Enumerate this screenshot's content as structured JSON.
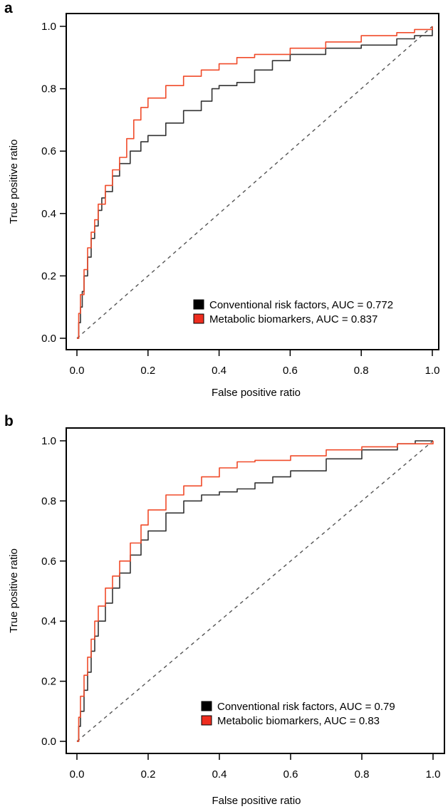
{
  "chart_data": [
    {
      "panel": "a",
      "type": "line",
      "xlabel": "False positive ratio",
      "ylabel": "True positive ratio",
      "xlim": [
        0,
        1
      ],
      "ylim": [
        0,
        1
      ],
      "xticks": [
        "0.0",
        "0.2",
        "0.4",
        "0.6",
        "0.8",
        "1.0"
      ],
      "yticks": [
        "0.0",
        "0.2",
        "0.4",
        "0.6",
        "0.8",
        "1.0"
      ],
      "grid": false,
      "legend_position": "bottom-right",
      "diagonal_reference": true,
      "series": [
        {
          "name": "Conventional risk factors, AUC = 0.772",
          "color": "#333333",
          "x": [
            0.0,
            0.005,
            0.01,
            0.015,
            0.02,
            0.03,
            0.04,
            0.05,
            0.06,
            0.07,
            0.08,
            0.1,
            0.12,
            0.15,
            0.18,
            0.2,
            0.25,
            0.3,
            0.35,
            0.38,
            0.4,
            0.45,
            0.5,
            0.55,
            0.6,
            0.7,
            0.8,
            0.9,
            0.95,
            1.0
          ],
          "y": [
            0.0,
            0.05,
            0.1,
            0.15,
            0.2,
            0.26,
            0.32,
            0.36,
            0.41,
            0.45,
            0.47,
            0.52,
            0.56,
            0.6,
            0.63,
            0.65,
            0.69,
            0.73,
            0.76,
            0.8,
            0.81,
            0.82,
            0.86,
            0.89,
            0.91,
            0.93,
            0.94,
            0.96,
            0.97,
            1.0
          ]
        },
        {
          "name": "Metabolic biomarkers, AUC = 0.837",
          "color": "#f04b2a",
          "x": [
            0.0,
            0.005,
            0.01,
            0.02,
            0.03,
            0.04,
            0.05,
            0.06,
            0.08,
            0.1,
            0.12,
            0.14,
            0.16,
            0.18,
            0.2,
            0.25,
            0.3,
            0.35,
            0.4,
            0.45,
            0.5,
            0.6,
            0.7,
            0.8,
            0.9,
            0.95,
            1.0
          ],
          "y": [
            0.0,
            0.08,
            0.14,
            0.22,
            0.29,
            0.34,
            0.38,
            0.43,
            0.49,
            0.54,
            0.58,
            0.64,
            0.7,
            0.74,
            0.77,
            0.81,
            0.84,
            0.86,
            0.88,
            0.9,
            0.91,
            0.93,
            0.95,
            0.97,
            0.98,
            0.99,
            1.0
          ]
        }
      ]
    },
    {
      "panel": "b",
      "type": "line",
      "xlabel": "False positive ratio",
      "ylabel": "True positive ratio",
      "xlim": [
        0,
        1
      ],
      "ylim": [
        0,
        1
      ],
      "xticks": [
        "0.0",
        "0.2",
        "0.4",
        "0.6",
        "0.8",
        "1.0"
      ],
      "yticks": [
        "0.0",
        "0.2",
        "0.4",
        "0.6",
        "0.8",
        "1.0"
      ],
      "grid": false,
      "legend_position": "bottom-right",
      "diagonal_reference": true,
      "series": [
        {
          "name": "Conventional risk factors, AUC = 0.79",
          "color": "#333333",
          "x": [
            0.0,
            0.005,
            0.01,
            0.02,
            0.03,
            0.04,
            0.05,
            0.06,
            0.08,
            0.1,
            0.12,
            0.15,
            0.18,
            0.2,
            0.25,
            0.3,
            0.35,
            0.4,
            0.45,
            0.5,
            0.55,
            0.6,
            0.7,
            0.8,
            0.9,
            0.95,
            1.0
          ],
          "y": [
            0.0,
            0.05,
            0.1,
            0.17,
            0.23,
            0.3,
            0.35,
            0.4,
            0.46,
            0.51,
            0.56,
            0.62,
            0.67,
            0.7,
            0.76,
            0.8,
            0.82,
            0.83,
            0.84,
            0.86,
            0.88,
            0.9,
            0.94,
            0.97,
            0.99,
            1.0,
            1.0
          ]
        },
        {
          "name": "Metabolic biomarkers, AUC = 0.83",
          "color": "#f04b2a",
          "x": [
            0.0,
            0.005,
            0.01,
            0.02,
            0.03,
            0.04,
            0.05,
            0.06,
            0.08,
            0.1,
            0.12,
            0.15,
            0.18,
            0.2,
            0.25,
            0.3,
            0.35,
            0.4,
            0.45,
            0.5,
            0.6,
            0.7,
            0.8,
            0.9,
            1.0
          ],
          "y": [
            0.0,
            0.08,
            0.15,
            0.22,
            0.28,
            0.34,
            0.4,
            0.45,
            0.51,
            0.55,
            0.6,
            0.66,
            0.72,
            0.77,
            0.82,
            0.85,
            0.88,
            0.91,
            0.93,
            0.935,
            0.95,
            0.97,
            0.98,
            0.99,
            1.0
          ]
        }
      ]
    }
  ],
  "panels": {
    "a": {
      "letter": "a"
    },
    "b": {
      "letter": "b"
    }
  }
}
